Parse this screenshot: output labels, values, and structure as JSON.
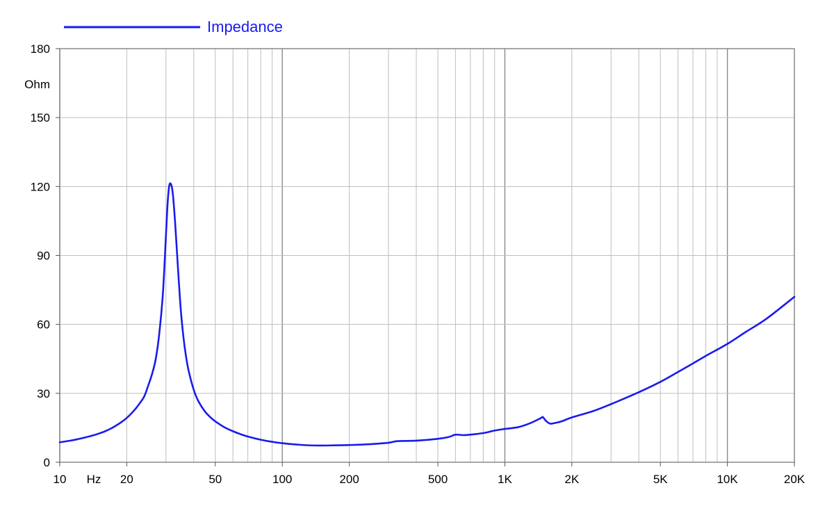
{
  "chart_data": {
    "type": "line",
    "title": "",
    "xlabel": "",
    "ylabel": "",
    "x_unit": "Hz",
    "y_unit": "Ohm",
    "x_scale": "log",
    "xlim": [
      10,
      20000
    ],
    "ylim": [
      0,
      180
    ],
    "grid": true,
    "legend": "top-left",
    "x_ticks": [
      {
        "value": 10,
        "label": "10"
      },
      {
        "value": 20,
        "label": "20"
      },
      {
        "value": 50,
        "label": "50"
      },
      {
        "value": 100,
        "label": "100"
      },
      {
        "value": 200,
        "label": "200"
      },
      {
        "value": 500,
        "label": "500"
      },
      {
        "value": 1000,
        "label": "1K"
      },
      {
        "value": 2000,
        "label": "2K"
      },
      {
        "value": 5000,
        "label": "5K"
      },
      {
        "value": 10000,
        "label": "10K"
      },
      {
        "value": 20000,
        "label": "20K"
      }
    ],
    "y_ticks": [
      {
        "value": 0,
        "label": "0"
      },
      {
        "value": 30,
        "label": "30"
      },
      {
        "value": 60,
        "label": "60"
      },
      {
        "value": 90,
        "label": "90"
      },
      {
        "value": 120,
        "label": "120"
      },
      {
        "value": 150,
        "label": "150"
      },
      {
        "value": 180,
        "label": "180"
      }
    ],
    "series": [
      {
        "name": "Impedance",
        "color": "#1a1aee",
        "points": [
          [
            10,
            8.7
          ],
          [
            11,
            9.3
          ],
          [
            12,
            10.0
          ],
          [
            13,
            10.8
          ],
          [
            14,
            11.6
          ],
          [
            15,
            12.5
          ],
          [
            16,
            13.5
          ],
          [
            17,
            14.7
          ],
          [
            18,
            16.1
          ],
          [
            19,
            17.6
          ],
          [
            20,
            19.3
          ],
          [
            21,
            21.3
          ],
          [
            22,
            23.5
          ],
          [
            23,
            26.0
          ],
          [
            24,
            28.8
          ],
          [
            25,
            33.5
          ],
          [
            26,
            38.5
          ],
          [
            27,
            45.0
          ],
          [
            28,
            56.0
          ],
          [
            29,
            72.0
          ],
          [
            29.7,
            90.0
          ],
          [
            30.4,
            110.0
          ],
          [
            31,
            120.0
          ],
          [
            31.6,
            121.0
          ],
          [
            32.2,
            117.0
          ],
          [
            33,
            104.0
          ],
          [
            34,
            84.0
          ],
          [
            35,
            66.0
          ],
          [
            36,
            54.0
          ],
          [
            37,
            45.5
          ],
          [
            38,
            39.5
          ],
          [
            40,
            31.5
          ],
          [
            42,
            26.5
          ],
          [
            45,
            22.0
          ],
          [
            48,
            19.2
          ],
          [
            50,
            17.8
          ],
          [
            55,
            15.2
          ],
          [
            60,
            13.5
          ],
          [
            65,
            12.2
          ],
          [
            70,
            11.2
          ],
          [
            80,
            9.8
          ],
          [
            90,
            8.9
          ],
          [
            100,
            8.3
          ],
          [
            120,
            7.6
          ],
          [
            140,
            7.3
          ],
          [
            160,
            7.3
          ],
          [
            200,
            7.5
          ],
          [
            250,
            7.9
          ],
          [
            300,
            8.5
          ],
          [
            330,
            9.2
          ],
          [
            400,
            9.4
          ],
          [
            500,
            10.2
          ],
          [
            560,
            11.0
          ],
          [
            600,
            12.0
          ],
          [
            650,
            11.8
          ],
          [
            700,
            12.0
          ],
          [
            800,
            12.7
          ],
          [
            900,
            13.8
          ],
          [
            1000,
            14.5
          ],
          [
            1150,
            15.3
          ],
          [
            1300,
            17.0
          ],
          [
            1450,
            19.2
          ],
          [
            1480,
            19.7
          ],
          [
            1530,
            18.0
          ],
          [
            1600,
            16.8
          ],
          [
            1700,
            17.2
          ],
          [
            1800,
            17.8
          ],
          [
            2000,
            19.5
          ],
          [
            2500,
            22.3
          ],
          [
            3000,
            25.3
          ],
          [
            4000,
            30.5
          ],
          [
            5000,
            35.0
          ],
          [
            6000,
            39.3
          ],
          [
            7000,
            43.0
          ],
          [
            8000,
            46.3
          ],
          [
            10000,
            51.5
          ],
          [
            12000,
            56.5
          ],
          [
            15000,
            62.5
          ],
          [
            20000,
            72.0
          ]
        ]
      }
    ]
  }
}
